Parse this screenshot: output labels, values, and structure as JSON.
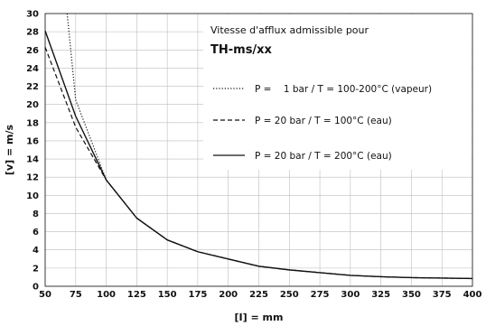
{
  "chart_data": {
    "type": "line",
    "title": "Vitesse d'afflux admissible pour",
    "subtitle": "TH-ms/xx",
    "xlabel": "[I] = mm",
    "ylabel": "[v] = m/s",
    "xlim": [
      50,
      400
    ],
    "ylim": [
      0,
      30
    ],
    "x_ticks": [
      "50",
      "75",
      "100",
      "125",
      "150",
      "175",
      "200",
      "225",
      "250",
      "275",
      "300",
      "325",
      "350",
      "375",
      "400"
    ],
    "y_ticks": [
      "0",
      "2",
      "4",
      "6",
      "8",
      "10",
      "12",
      "14",
      "16",
      "18",
      "20",
      "22",
      "24",
      "26",
      "28",
      "30"
    ],
    "grid": true,
    "legend_position": "top-right",
    "series": [
      {
        "name": "P =    1 bar / T = 100-200°C (vapeur)",
        "style": "dotted",
        "x": [
          68,
          75,
          100,
          125,
          150,
          175,
          200,
          225,
          250,
          275,
          300,
          325,
          350,
          375,
          400
        ],
        "y": [
          30,
          20.5,
          11.7,
          7.5,
          5.1,
          3.8,
          3.0,
          2.2,
          1.8,
          1.5,
          1.2,
          1.05,
          0.95,
          0.9,
          0.85
        ]
      },
      {
        "name": "P = 20 bar / T = 100°C (eau)",
        "style": "dashed",
        "x": [
          50,
          75,
          100,
          125,
          150,
          175,
          200,
          225,
          250,
          275,
          300,
          325,
          350,
          375,
          400
        ],
        "y": [
          26.3,
          17.5,
          11.7,
          7.5,
          5.1,
          3.8,
          3.0,
          2.2,
          1.8,
          1.5,
          1.2,
          1.05,
          0.95,
          0.9,
          0.85
        ]
      },
      {
        "name": "P = 20 bar / T = 200°C (eau)",
        "style": "solid",
        "x": [
          50,
          75,
          100,
          125,
          150,
          175,
          200,
          225,
          250,
          275,
          300,
          325,
          350,
          375,
          400
        ],
        "y": [
          28.1,
          18.7,
          11.7,
          7.5,
          5.1,
          3.8,
          3.0,
          2.2,
          1.8,
          1.5,
          1.2,
          1.05,
          0.95,
          0.9,
          0.85
        ]
      }
    ]
  }
}
